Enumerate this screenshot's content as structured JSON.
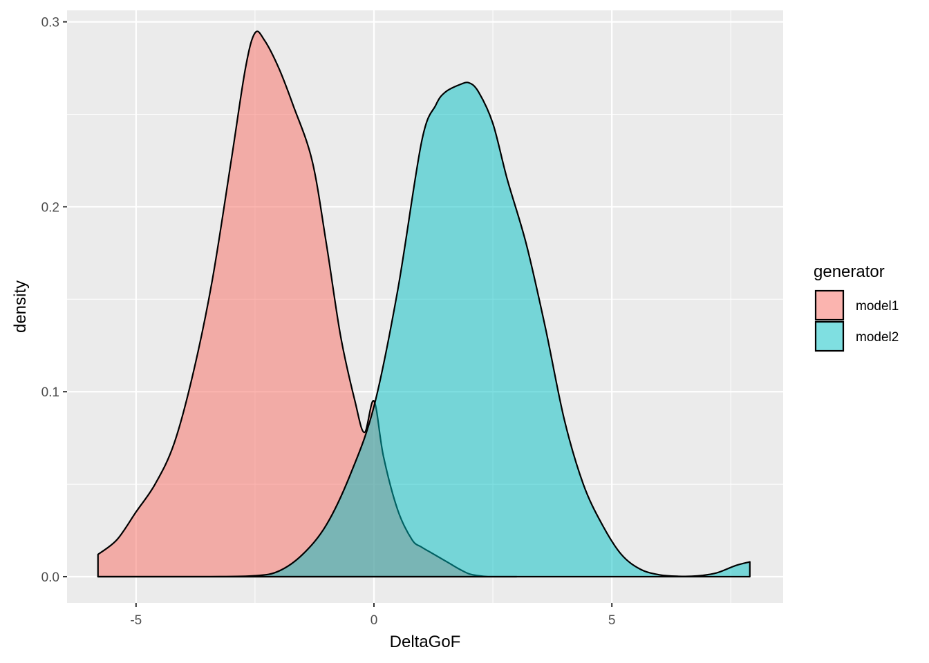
{
  "chart_data": {
    "type": "area",
    "xlabel": "DeltaGoF",
    "ylabel": "density",
    "xlim": [
      -6.45,
      8.6
    ],
    "ylim": [
      -0.0142,
      0.3062
    ],
    "x_ticks": [
      -5,
      0,
      5
    ],
    "x_tick_labels": [
      "-5",
      "0",
      "5"
    ],
    "y_ticks": [
      0.0,
      0.1,
      0.2,
      0.3
    ],
    "y_tick_labels": [
      "0.0",
      "0.1",
      "0.2",
      "0.3"
    ],
    "grid": true,
    "legend": {
      "title": "generator",
      "position": "right"
    },
    "series": [
      {
        "name": "model1",
        "color": "#F8766D",
        "fill_opacity": 0.55,
        "x": [
          -5.8,
          -5.4,
          -5.0,
          -4.6,
          -4.2,
          -3.8,
          -3.4,
          -3.0,
          -2.7,
          -2.5,
          -2.3,
          -2.0,
          -1.7,
          -1.3,
          -1.0,
          -0.7,
          -0.4,
          -0.2,
          0.0,
          0.2,
          0.5,
          0.8,
          1.0,
          1.2,
          1.4,
          1.6,
          1.8,
          2.0,
          2.2,
          2.4,
          2.7,
          3.0
        ],
        "y": [
          0.012,
          0.02,
          0.035,
          0.05,
          0.072,
          0.11,
          0.16,
          0.225,
          0.275,
          0.294,
          0.29,
          0.275,
          0.255,
          0.225,
          0.18,
          0.13,
          0.095,
          0.078,
          0.095,
          0.065,
          0.036,
          0.02,
          0.016,
          0.013,
          0.01,
          0.007,
          0.004,
          0.0015,
          0.0005,
          0.0,
          0.0,
          0.0
        ]
      },
      {
        "name": "model2",
        "color": "#00BFC4",
        "fill_opacity": 0.5,
        "x": [
          -5.8,
          -3.5,
          -2.5,
          -2.0,
          -1.5,
          -1.0,
          -0.5,
          0.0,
          0.5,
          1.0,
          1.3,
          1.5,
          1.8,
          2.0,
          2.2,
          2.5,
          2.8,
          3.2,
          3.6,
          4.0,
          4.4,
          4.8,
          5.2,
          5.6,
          6.0,
          6.4,
          6.8,
          7.2,
          7.6,
          7.9
        ],
        "y": [
          0.0,
          0.0,
          0.0005,
          0.003,
          0.012,
          0.028,
          0.055,
          0.092,
          0.155,
          0.235,
          0.255,
          0.262,
          0.266,
          0.267,
          0.262,
          0.245,
          0.215,
          0.18,
          0.135,
          0.085,
          0.05,
          0.028,
          0.012,
          0.004,
          0.001,
          0.0002,
          0.0004,
          0.002,
          0.006,
          0.008
        ]
      }
    ]
  }
}
